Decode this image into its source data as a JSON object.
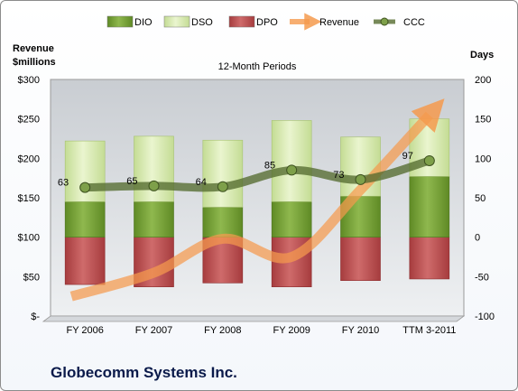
{
  "company": "Globecomm Systems Inc.",
  "chart_data": {
    "type": "bar",
    "title": "12-Month Periods",
    "left_axis_label": [
      "Revenue",
      "$millions"
    ],
    "right_axis_label": "Days",
    "categories": [
      "FY 2006",
      "FY 2007",
      "FY 2008",
      "FY 2009",
      "FY 2010",
      "TTM 3-2011"
    ],
    "left_axis": {
      "ylim": [
        0,
        300
      ],
      "ticks": [
        300,
        250,
        200,
        150,
        100,
        50,
        0
      ],
      "tick_labels": [
        "$300",
        "$250",
        "$200",
        "$150",
        "$100",
        "$50",
        "$-"
      ]
    },
    "right_axis": {
      "ylim": [
        -100,
        200
      ],
      "ticks": [
        200,
        150,
        100,
        50,
        0,
        -50,
        -100
      ],
      "tick_labels": [
        "200",
        "150",
        "100",
        "50",
        "0",
        "-50",
        "-100"
      ]
    },
    "series": [
      {
        "name": "DIO",
        "axis": "days",
        "kind": "stacked-bar",
        "color": "#6f9a2f",
        "values": [
          45,
          45,
          38,
          45,
          52,
          77
        ]
      },
      {
        "name": "DSO",
        "axis": "days",
        "kind": "stacked-bar",
        "color": "#d4e8a8",
        "values": [
          77,
          83,
          85,
          103,
          75,
          73
        ]
      },
      {
        "name": "DPO",
        "axis": "days",
        "kind": "negative-bar",
        "color": "#b94a4c",
        "values": [
          -60,
          -63,
          -58,
          -63,
          -55,
          -53
        ]
      },
      {
        "name": "Revenue",
        "axis": "revenue",
        "kind": "line",
        "color": "#f59a4e",
        "values": [
          25,
          55,
          98,
          75,
          160,
          255
        ]
      },
      {
        "name": "CCC",
        "axis": "days",
        "kind": "line",
        "color": "#556b2f",
        "values": [
          63,
          65,
          64,
          85,
          73,
          97
        ]
      }
    ],
    "data_labels": [
      "63",
      "65",
      "64",
      "85",
      "73",
      "97"
    ],
    "legend": [
      "DIO",
      "DSO",
      "DPO",
      "Revenue",
      "CCC"
    ],
    "legend_position": "top",
    "grid": false
  }
}
